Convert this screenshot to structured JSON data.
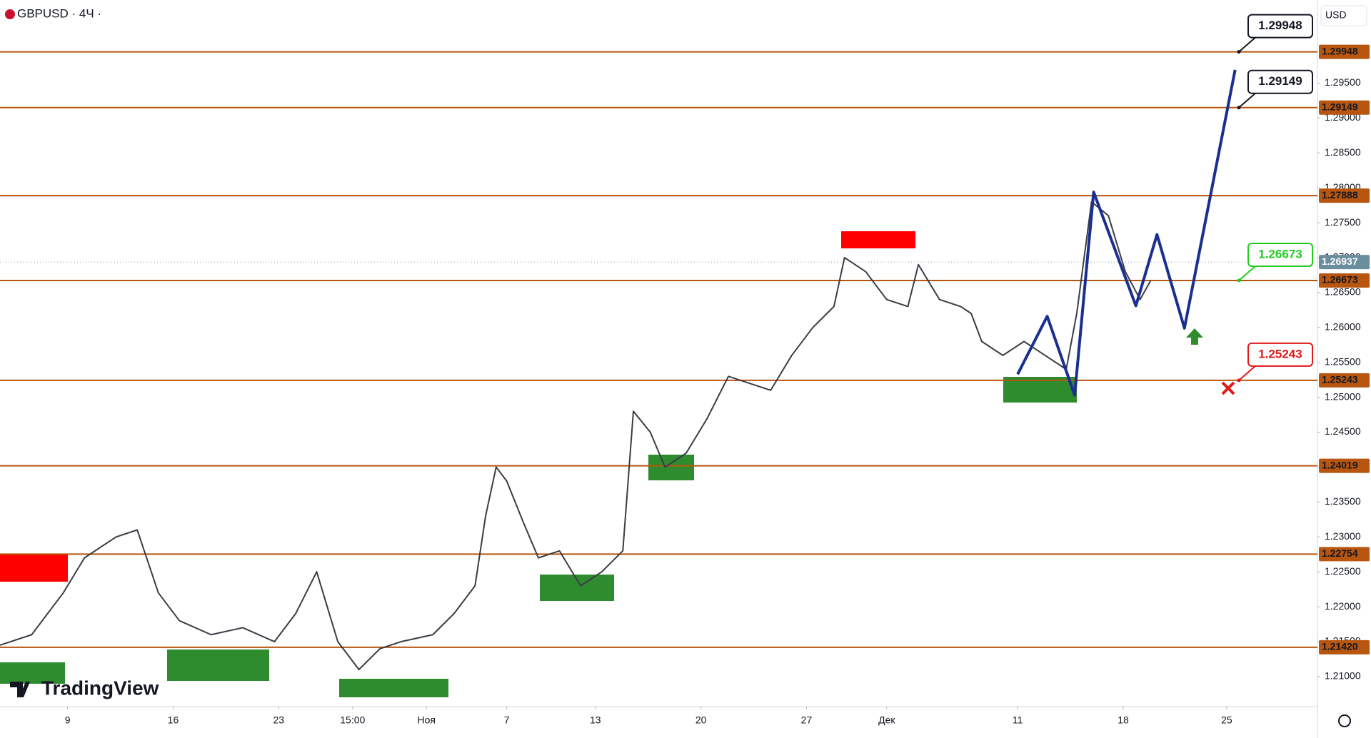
{
  "chart_data": {
    "type": "line",
    "title": "GBPUSD · 4Ч ·",
    "currency": "USD",
    "watermark": "TradingView",
    "ylim": [
      1.2057,
      1.3069
    ],
    "yticks": [
      {
        "value": 1.21,
        "label": "1.21000"
      },
      {
        "value": 1.215,
        "label": "1.21500"
      },
      {
        "value": 1.22,
        "label": "1.22000"
      },
      {
        "value": 1.225,
        "label": "1.22500"
      },
      {
        "value": 1.23,
        "label": "1.23000"
      },
      {
        "value": 1.235,
        "label": "1.23500"
      },
      {
        "value": 1.24,
        "label": "1.24000"
      },
      {
        "value": 1.245,
        "label": "1.24500"
      },
      {
        "value": 1.25,
        "label": "1.25000"
      },
      {
        "value": 1.255,
        "label": "1.25500"
      },
      {
        "value": 1.26,
        "label": "1.26000"
      },
      {
        "value": 1.265,
        "label": "1.26500"
      },
      {
        "value": 1.27,
        "label": "1.27000"
      },
      {
        "value": 1.275,
        "label": "1.27500"
      },
      {
        "value": 1.28,
        "label": "1.28000"
      },
      {
        "value": 1.285,
        "label": "1.28500"
      },
      {
        "value": 1.29,
        "label": "1.29000"
      },
      {
        "value": 1.295,
        "label": "1.29500"
      }
    ],
    "xlim": [
      0,
      62.4
    ],
    "xticks": [
      {
        "value": 3.2,
        "label": "9"
      },
      {
        "value": 8.2,
        "label": "16"
      },
      {
        "value": 13.2,
        "label": "23"
      },
      {
        "value": 16.7,
        "label": "15:00"
      },
      {
        "value": 20.2,
        "label": "Ноя"
      },
      {
        "value": 24,
        "label": "7"
      },
      {
        "value": 28.2,
        "label": "13"
      },
      {
        "value": 33.2,
        "label": "20"
      },
      {
        "value": 38.2,
        "label": "27"
      },
      {
        "value": 42,
        "label": "Дек"
      },
      {
        "value": 48.2,
        "label": "11"
      },
      {
        "value": 53.2,
        "label": "18"
      },
      {
        "value": 58.1,
        "label": "25"
      }
    ],
    "series": [
      {
        "color": "#3a3d45",
        "x": [
          0,
          1.5,
          3,
          4,
          5.5,
          6.5,
          7.5,
          8.5,
          10,
          11.5,
          13,
          14,
          15,
          16,
          17,
          18,
          19,
          20.5,
          21.5,
          22.5,
          23,
          23.5,
          24,
          24.8,
          25.5,
          26.5,
          27.5,
          28.5,
          29.5,
          30,
          30.8,
          31.5,
          32.5,
          33.5,
          34.5,
          35.5,
          36.5,
          37.5,
          38.5,
          39.5,
          40,
          41,
          42,
          43,
          43.5,
          44.5,
          45.5,
          46,
          46.5,
          47.5,
          48.5,
          49.5,
          50.5,
          51,
          51.7,
          52.5,
          53.3,
          54,
          54.5
        ],
        "values": [
          1.2145,
          1.216,
          1.222,
          1.227,
          1.23,
          1.231,
          1.222,
          1.218,
          1.216,
          1.217,
          1.215,
          1.219,
          1.225,
          1.215,
          1.211,
          1.214,
          1.215,
          1.216,
          1.219,
          1.223,
          1.233,
          1.24,
          1.238,
          1.232,
          1.227,
          1.228,
          1.223,
          1.225,
          1.228,
          1.248,
          1.245,
          1.24,
          1.242,
          1.247,
          1.253,
          1.252,
          1.251,
          1.256,
          1.26,
          1.263,
          1.27,
          1.268,
          1.264,
          1.263,
          1.269,
          1.264,
          1.263,
          1.262,
          1.258,
          1.256,
          1.258,
          1.256,
          1.254,
          1.262,
          1.278,
          1.276,
          1.268,
          1.264,
          1.2667
        ]
      },
      {
        "color": "#1a2f8f",
        "x": [
          48.2,
          49.6,
          50.9,
          51.8,
          53.8,
          54.8,
          56.1,
          58.5
        ],
        "values": [
          1.2533,
          1.2616,
          1.2503,
          1.2794,
          1.2631,
          1.2733,
          1.2599,
          1.2969
        ]
      }
    ],
    "levels": [
      1.29948,
      1.29149,
      1.27888,
      1.26673,
      1.25243,
      1.24019,
      1.22754,
      {
        "value": 1.2142,
        "label": "1.21420"
      }
    ],
    "level_color": "#b8560f",
    "last_price": 1.26937,
    "callouts": [
      {
        "value": 1.29948,
        "color": "#131722"
      },
      {
        "value": 1.29149,
        "color": "#131722"
      },
      {
        "value": 1.26673,
        "color": "#22cc22"
      },
      {
        "value": 1.25243,
        "color": "#e01919"
      }
    ]
  }
}
